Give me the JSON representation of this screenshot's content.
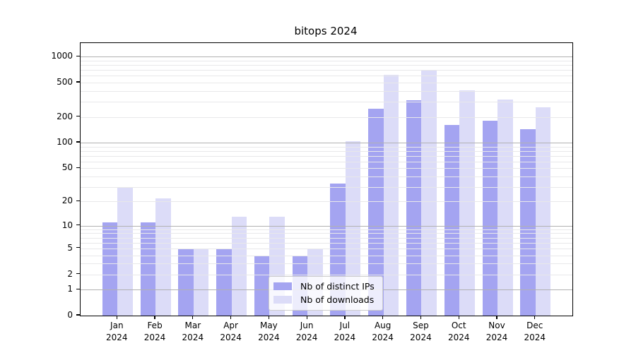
{
  "chart_data": {
    "type": "bar",
    "title": "bitops 2024",
    "categories": [
      "Jan",
      "Feb",
      "Mar",
      "Apr",
      "May",
      "Jun",
      "Jul",
      "Aug",
      "Sep",
      "Oct",
      "Nov",
      "Dec"
    ],
    "year_label": "2024",
    "series": [
      {
        "name": "Nb of distinct IPs",
        "color": "#a4a4f1",
        "values": [
          11,
          11,
          5,
          5,
          4,
          4,
          33,
          250,
          310,
          160,
          180,
          145
        ]
      },
      {
        "name": "Nb of downloads",
        "color": "#dcdcf8",
        "values": [
          30,
          22,
          5,
          13,
          13,
          5,
          104,
          620,
          700,
          410,
          320,
          260
        ]
      }
    ],
    "yscale": "log1p",
    "ylim": [
      0,
      1000
    ],
    "yticks": [
      0,
      1,
      2,
      5,
      10,
      20,
      50,
      100,
      200,
      500,
      1000
    ],
    "grid": {
      "major_values": [
        1,
        10,
        100,
        1000
      ],
      "minor_values": [
        2,
        3,
        4,
        5,
        6,
        7,
        8,
        9,
        20,
        30,
        40,
        50,
        60,
        70,
        80,
        90,
        200,
        300,
        400,
        500,
        600,
        700,
        800,
        900
      ],
      "major_color": "#b1b1b1",
      "minor_color": "#e8e8ea"
    },
    "legend_position": "lower center",
    "axis_color": "#000000",
    "background_color": "#ffffff"
  }
}
